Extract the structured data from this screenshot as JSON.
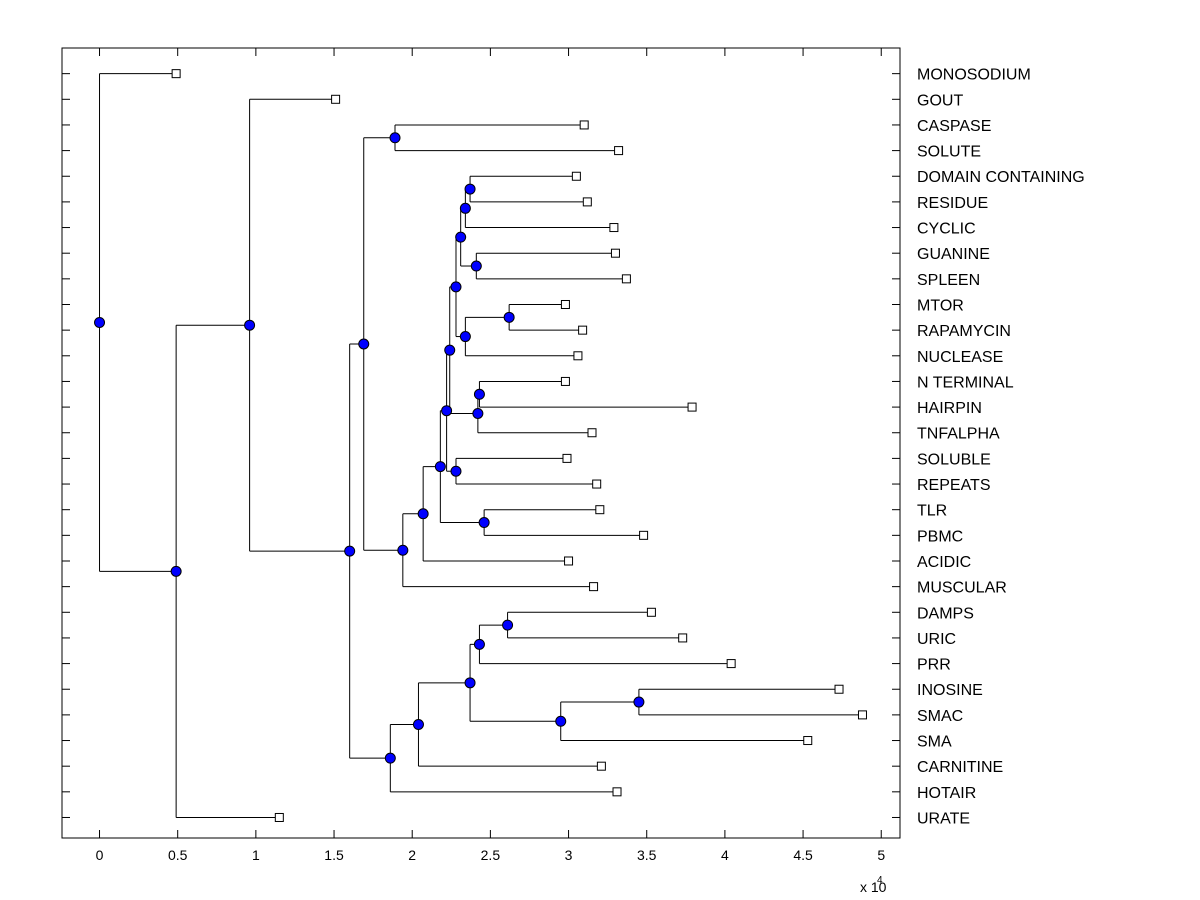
{
  "chart_data": {
    "type": "dendrogram",
    "title": "",
    "xlabel": "",
    "ylabel": "",
    "x_multiplier": "x 10",
    "x_multiplier_exp": "4",
    "xlim": [
      -0.24,
      5.12
    ],
    "ylim": [
      0.0,
      30.8
    ],
    "x_ticks": [
      {
        "value": 0,
        "label": "0"
      },
      {
        "value": 0.5,
        "label": "0.5"
      },
      {
        "value": 1,
        "label": "1"
      },
      {
        "value": 1.5,
        "label": "1.5"
      },
      {
        "value": 2,
        "label": "2"
      },
      {
        "value": 2.5,
        "label": "2.5"
      },
      {
        "value": 3,
        "label": "3"
      },
      {
        "value": 3.5,
        "label": "3.5"
      },
      {
        "value": 4,
        "label": "4"
      },
      {
        "value": 4.5,
        "label": "4.5"
      },
      {
        "value": 5,
        "label": "5"
      }
    ],
    "leaves": [
      {
        "label": "MONOSODIUM",
        "x": 0.49
      },
      {
        "label": "GOUT",
        "x": 1.51
      },
      {
        "label": "CASPASE",
        "x": 3.1
      },
      {
        "label": "SOLUTE",
        "x": 3.32
      },
      {
        "label": "DOMAIN CONTAINING",
        "x": 3.05
      },
      {
        "label": "RESIDUE",
        "x": 3.12
      },
      {
        "label": "CYCLIC",
        "x": 3.29
      },
      {
        "label": "GUANINE",
        "x": 3.3
      },
      {
        "label": "SPLEEN",
        "x": 3.37
      },
      {
        "label": "MTOR",
        "x": 2.98
      },
      {
        "label": "RAPAMYCIN",
        "x": 3.09
      },
      {
        "label": "NUCLEASE",
        "x": 3.06
      },
      {
        "label": "N TERMINAL",
        "x": 2.98
      },
      {
        "label": "HAIRPIN",
        "x": 3.79
      },
      {
        "label": "TNFALPHA",
        "x": 3.15
      },
      {
        "label": "SOLUBLE",
        "x": 2.99
      },
      {
        "label": "REPEATS",
        "x": 3.18
      },
      {
        "label": "TLR",
        "x": 3.2
      },
      {
        "label": "PBMC",
        "x": 3.48
      },
      {
        "label": "ACIDIC",
        "x": 3.0
      },
      {
        "label": "MUSCULAR",
        "x": 3.16
      },
      {
        "label": "DAMPS",
        "x": 3.53
      },
      {
        "label": "URIC",
        "x": 3.73
      },
      {
        "label": "PRR",
        "x": 4.04
      },
      {
        "label": "INOSINE",
        "x": 4.73
      },
      {
        "label": "SMAC",
        "x": 4.88
      },
      {
        "label": "SMA",
        "x": 4.53
      },
      {
        "label": "CARNITINE",
        "x": 3.21
      },
      {
        "label": "HOTAIR",
        "x": 3.31
      },
      {
        "label": "URATE",
        "x": 1.15
      }
    ],
    "merges": [
      {
        "id": "A",
        "x": 2.37,
        "children": [
          4,
          5
        ]
      },
      {
        "id": "B",
        "x": 2.34,
        "children": [
          "A",
          6
        ]
      },
      {
        "id": "C",
        "x": 2.41,
        "children": [
          7,
          8
        ]
      },
      {
        "id": "D",
        "x": 2.31,
        "children": [
          "B",
          "C"
        ]
      },
      {
        "id": "E",
        "x": 2.62,
        "children": [
          9,
          10
        ]
      },
      {
        "id": "F",
        "x": 2.34,
        "children": [
          "E",
          11
        ]
      },
      {
        "id": "G",
        "x": 2.28,
        "children": [
          "D",
          "F"
        ]
      },
      {
        "id": "H",
        "x": 2.43,
        "children": [
          12,
          13
        ]
      },
      {
        "id": "I",
        "x": 2.42,
        "children": [
          "H",
          14
        ]
      },
      {
        "id": "J",
        "x": 2.24,
        "children": [
          "G",
          "I"
        ]
      },
      {
        "id": "K",
        "x": 2.28,
        "children": [
          15,
          16
        ]
      },
      {
        "id": "L",
        "x": 2.22,
        "children": [
          "J",
          "K"
        ]
      },
      {
        "id": "M",
        "x": 2.46,
        "children": [
          17,
          18
        ]
      },
      {
        "id": "N",
        "x": 2.18,
        "children": [
          "L",
          "M"
        ]
      },
      {
        "id": "O",
        "x": 2.07,
        "children": [
          "N",
          19
        ]
      },
      {
        "id": "P",
        "x": 1.94,
        "children": [
          "O",
          20
        ]
      },
      {
        "id": "Q",
        "x": 1.89,
        "children": [
          2,
          3
        ]
      },
      {
        "id": "R",
        "x": 1.69,
        "children": [
          "Q",
          "P"
        ]
      },
      {
        "id": "S",
        "x": 2.61,
        "children": [
          21,
          22
        ]
      },
      {
        "id": "T",
        "x": 2.43,
        "children": [
          "S",
          23
        ]
      },
      {
        "id": "U",
        "x": 3.45,
        "children": [
          24,
          25
        ]
      },
      {
        "id": "V",
        "x": 2.95,
        "children": [
          "U",
          26
        ]
      },
      {
        "id": "W",
        "x": 2.37,
        "children": [
          "T",
          "V"
        ]
      },
      {
        "id": "X",
        "x": 2.04,
        "children": [
          "W",
          27
        ]
      },
      {
        "id": "Y",
        "x": 1.86,
        "children": [
          "X",
          28
        ]
      },
      {
        "id": "Z",
        "x": 1.6,
        "children": [
          "R",
          "Y"
        ]
      },
      {
        "id": "AA",
        "x": 0.96,
        "children": [
          1,
          "Z"
        ]
      },
      {
        "id": "AB",
        "x": 0.49,
        "children": [
          "AA",
          29
        ]
      },
      {
        "id": "AC",
        "x": 0.0,
        "children": [
          0,
          "AB"
        ]
      }
    ]
  }
}
